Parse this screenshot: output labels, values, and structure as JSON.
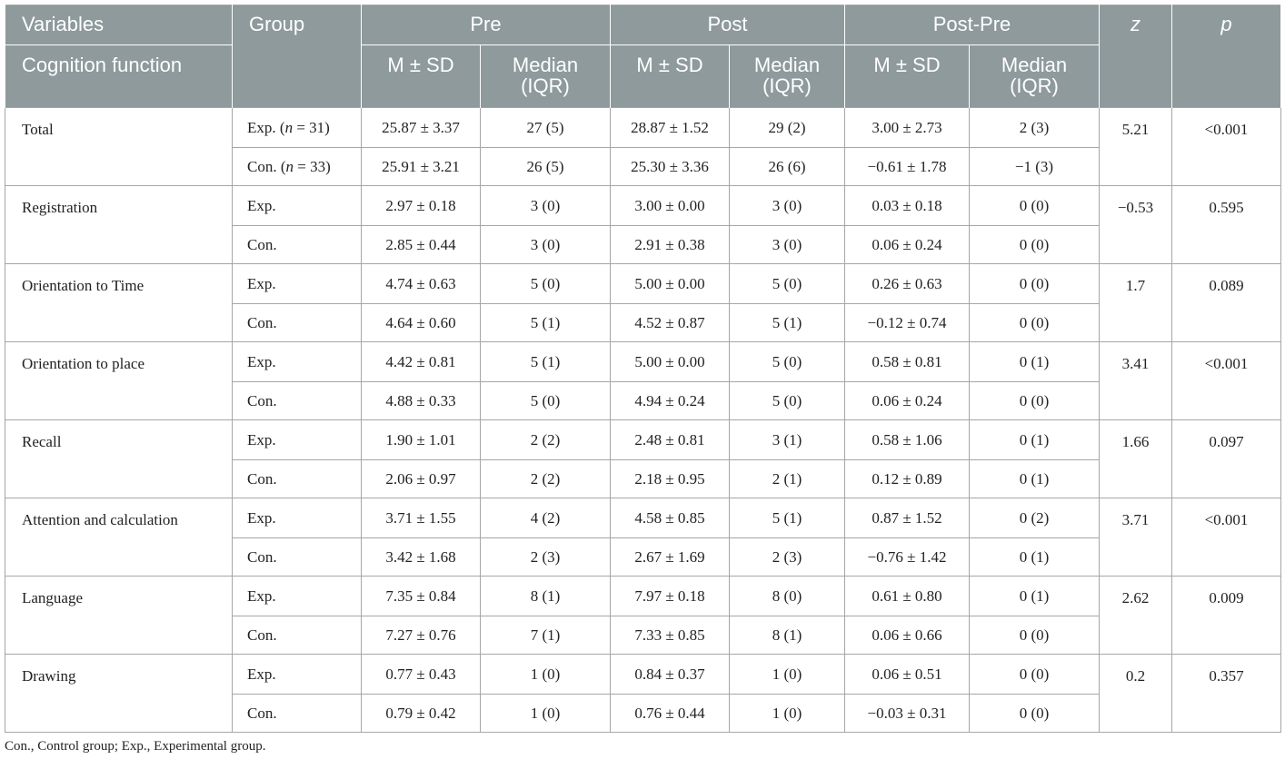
{
  "header": {
    "variables": "Variables",
    "group": "Group",
    "pre": "Pre",
    "post": "Post",
    "post_pre": "Post-Pre",
    "z": "z",
    "p": "p",
    "cognition_function": "Cognition function",
    "m_sd": "M ± SD",
    "median_iqr_line1": "Median",
    "median_iqr_line2": "(IQR)"
  },
  "sections": [
    {
      "variable": "Total",
      "z": "5.21",
      "p": "<0.001",
      "rows": [
        {
          "group": "Exp.",
          "n": "31",
          "pre_msd": "25.87 ± 3.37",
          "pre_med": "27 (5)",
          "post_msd": "28.87 ± 1.52",
          "post_med": "29 (2)",
          "diff_msd": "3.00 ± 2.73",
          "diff_med": "2 (3)"
        },
        {
          "group": "Con.",
          "n": "33",
          "pre_msd": "25.91 ± 3.21",
          "pre_med": "26 (5)",
          "post_msd": "25.30 ± 3.36",
          "post_med": "26 (6)",
          "diff_msd": "−0.61 ± 1.78",
          "diff_med": "−1 (3)"
        }
      ]
    },
    {
      "variable": "Registration",
      "z": "−0.53",
      "p": "0.595",
      "rows": [
        {
          "group": "Exp.",
          "pre_msd": "2.97 ± 0.18",
          "pre_med": "3 (0)",
          "post_msd": "3.00 ± 0.00",
          "post_med": "3 (0)",
          "diff_msd": "0.03 ± 0.18",
          "diff_med": "0 (0)"
        },
        {
          "group": "Con.",
          "pre_msd": "2.85 ± 0.44",
          "pre_med": "3 (0)",
          "post_msd": "2.91 ± 0.38",
          "post_med": "3 (0)",
          "diff_msd": "0.06 ± 0.24",
          "diff_med": "0 (0)"
        }
      ]
    },
    {
      "variable": "Orientation to Time",
      "z": "1.7",
      "p": "0.089",
      "rows": [
        {
          "group": "Exp.",
          "pre_msd": "4.74 ± 0.63",
          "pre_med": "5 (0)",
          "post_msd": "5.00 ± 0.00",
          "post_med": "5 (0)",
          "diff_msd": "0.26 ± 0.63",
          "diff_med": "0 (0)"
        },
        {
          "group": "Con.",
          "pre_msd": "4.64 ± 0.60",
          "pre_med": "5 (1)",
          "post_msd": "4.52 ± 0.87",
          "post_med": "5 (1)",
          "diff_msd": "−0.12 ± 0.74",
          "diff_med": "0 (0)"
        }
      ]
    },
    {
      "variable": "Orientation to place",
      "z": "3.41",
      "p": "<0.001",
      "rows": [
        {
          "group": "Exp.",
          "pre_msd": "4.42 ± 0.81",
          "pre_med": "5 (1)",
          "post_msd": "5.00 ± 0.00",
          "post_med": "5 (0)",
          "diff_msd": "0.58 ± 0.81",
          "diff_med": "0 (1)"
        },
        {
          "group": "Con.",
          "pre_msd": "4.88 ± 0.33",
          "pre_med": "5 (0)",
          "post_msd": "4.94 ± 0.24",
          "post_med": "5 (0)",
          "diff_msd": "0.06 ± 0.24",
          "diff_med": "0 (0)"
        }
      ]
    },
    {
      "variable": "Recall",
      "z": "1.66",
      "p": "0.097",
      "rows": [
        {
          "group": "Exp.",
          "pre_msd": "1.90 ± 1.01",
          "pre_med": "2 (2)",
          "post_msd": "2.48 ± 0.81",
          "post_med": "3 (1)",
          "diff_msd": "0.58 ± 1.06",
          "diff_med": "0 (1)"
        },
        {
          "group": "Con.",
          "pre_msd": "2.06 ± 0.97",
          "pre_med": "2 (2)",
          "post_msd": "2.18 ± 0.95",
          "post_med": "2 (1)",
          "diff_msd": "0.12 ± 0.89",
          "diff_med": "0 (1)"
        }
      ]
    },
    {
      "variable": "Attention and calculation",
      "z": "3.71",
      "p": "<0.001",
      "rows": [
        {
          "group": "Exp.",
          "pre_msd": "3.71 ± 1.55",
          "pre_med": "4 (2)",
          "post_msd": "4.58 ± 0.85",
          "post_med": "5 (1)",
          "diff_msd": "0.87 ± 1.52",
          "diff_med": "0 (2)"
        },
        {
          "group": "Con.",
          "pre_msd": "3.42 ± 1.68",
          "pre_med": "2 (3)",
          "post_msd": "2.67 ± 1.69",
          "post_med": "2 (3)",
          "diff_msd": "−0.76 ± 1.42",
          "diff_med": "0 (1)"
        }
      ]
    },
    {
      "variable": "Language",
      "z": "2.62",
      "p": "0.009",
      "rows": [
        {
          "group": "Exp.",
          "pre_msd": "7.35 ± 0.84",
          "pre_med": "8 (1)",
          "post_msd": "7.97 ± 0.18",
          "post_med": "8 (0)",
          "diff_msd": "0.61 ± 0.80",
          "diff_med": "0 (1)"
        },
        {
          "group": "Con.",
          "pre_msd": "7.27 ± 0.76",
          "pre_med": "7 (1)",
          "post_msd": "7.33 ± 0.85",
          "post_med": "8 (1)",
          "diff_msd": "0.06 ± 0.66",
          "diff_med": "0 (0)"
        }
      ]
    },
    {
      "variable": "Drawing",
      "z": "0.2",
      "p": "0.357",
      "rows": [
        {
          "group": "Exp.",
          "pre_msd": "0.77 ± 0.43",
          "pre_med": "1 (0)",
          "post_msd": "0.84 ± 0.37",
          "post_med": "1 (0)",
          "diff_msd": "0.06 ± 0.51",
          "diff_med": "0 (0)"
        },
        {
          "group": "Con.",
          "pre_msd": "0.79 ± 0.42",
          "pre_med": "1 (0)",
          "post_msd": "0.76 ± 0.44",
          "post_med": "1 (0)",
          "diff_msd": "−0.03 ± 0.31",
          "diff_med": "0 (0)"
        }
      ]
    }
  ],
  "footnote": "Con., Control group; Exp., Experimental group."
}
